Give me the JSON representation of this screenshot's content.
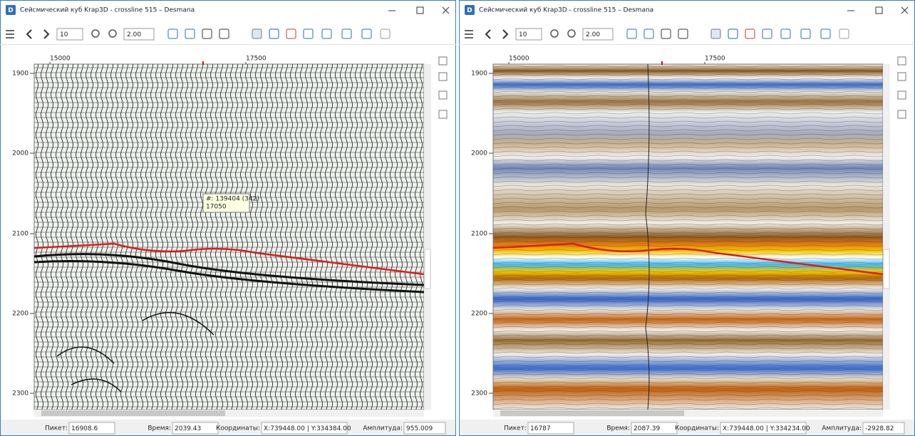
{
  "windows": [
    {
      "title": "Сейсмический куб Krap3D - crossline 515 – Desmana",
      "toolbar": {
        "step": "10",
        "zoom": "2.00"
      },
      "x_ticks": [
        "15000",
        "17500"
      ],
      "y_ticks": [
        "1900",
        "2000",
        "2100",
        "2200",
        "2300"
      ],
      "tooltip": [
        "#: 139404 (342)",
        "17050"
      ],
      "status": [
        {
          "label": "Пикет:",
          "value": "16908.6"
        },
        {
          "label": "Время:",
          "value": "2039.43"
        },
        {
          "label": "Координаты:",
          "value": "X:739448.00 | Y:334384.00"
        },
        {
          "label": "Амплитуда:",
          "value": "955.009"
        }
      ]
    },
    {
      "title": "Сейсмический куб Krap3D - crossline 515 – Desmana",
      "toolbar": {
        "step": "10",
        "zoom": "2.00"
      },
      "x_ticks": [
        "15000",
        "17500"
      ],
      "y_ticks": [
        "1900",
        "2000",
        "2100",
        "2200",
        "2300"
      ],
      "status": [
        {
          "label": "Пикет:",
          "value": "16787"
        },
        {
          "label": "Время:",
          "value": "2087.39"
        },
        {
          "label": "Координаты:",
          "value": "X:739448.00 | Y:334234.00"
        },
        {
          "label": "Амплитуда:",
          "value": "-2928.82"
        }
      ]
    }
  ]
}
